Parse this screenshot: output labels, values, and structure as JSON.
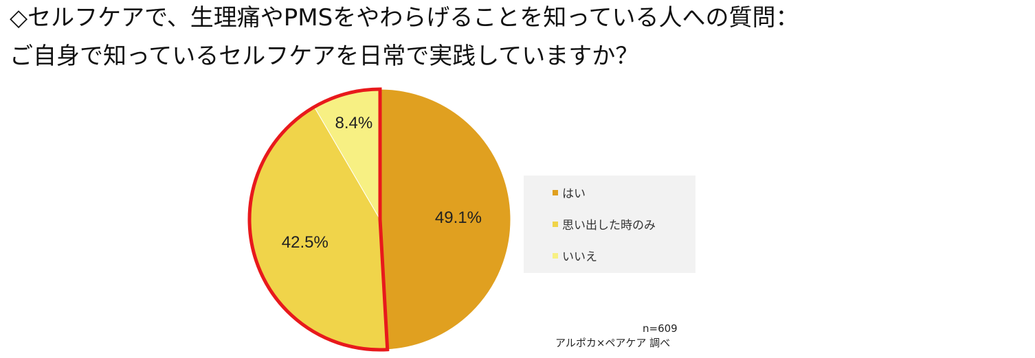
{
  "heading": {
    "line1": "◇セルフケアで、生理痛やPMSをやわらげることを知っている人への質問：",
    "line2": "ご自身で知っているセルフケアを日常で実践していますか？"
  },
  "chart_data": {
    "type": "pie",
    "slices": [
      {
        "name": "はい",
        "value": 49.1,
        "label": "49.1%",
        "color": "#E0A020"
      },
      {
        "name": "思い出した時のみ",
        "value": 42.5,
        "label": "42.5%",
        "color": "#F0D44A"
      },
      {
        "name": "いいえ",
        "value": 8.4,
        "label": "8.4%",
        "color": "#F7F083"
      }
    ],
    "highlight_color": "#E8191C",
    "legend_position": "right"
  },
  "legend": {
    "items": [
      {
        "label": "はい",
        "color": "#E0A020"
      },
      {
        "label": "思い出した時のみ",
        "color": "#F0D44A"
      },
      {
        "label": "いいえ",
        "color": "#F7F083"
      }
    ]
  },
  "notes": {
    "sample_size": "n=609",
    "source": "アルポカ×ペアケア 調べ"
  }
}
